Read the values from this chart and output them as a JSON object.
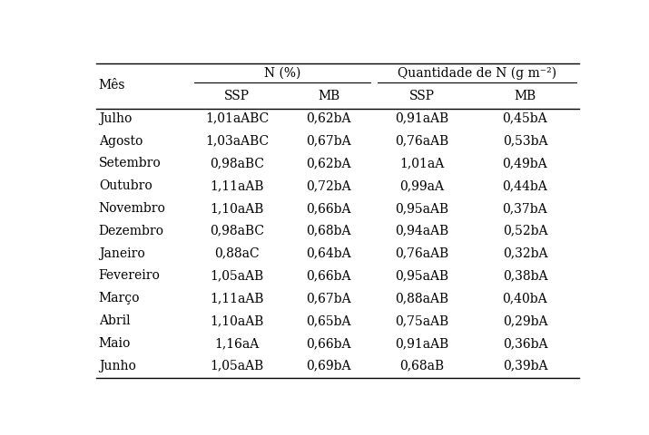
{
  "rows": [
    [
      "Julho",
      "1,01aABC",
      "0,62bA",
      "0,91aAB",
      "0,45bA"
    ],
    [
      "Agosto",
      "1,03aABC",
      "0,67bA",
      "0,76aAB",
      "0,53bA"
    ],
    [
      "Setembro",
      "0,98aBC",
      "0,62bA",
      "1,01aA",
      "0,49bA"
    ],
    [
      "Outubro",
      "1,11aAB",
      "0,72bA",
      "0,99aA",
      "0,44bA"
    ],
    [
      "Novembro",
      "1,10aAB",
      "0,66bA",
      "0,95aAB",
      "0,37bA"
    ],
    [
      "Dezembro",
      "0,98aBC",
      "0,68bA",
      "0,94aAB",
      "0,52bA"
    ],
    [
      "Janeiro",
      "0,88aC",
      "0,64bA",
      "0,76aAB",
      "0,32bA"
    ],
    [
      "Fevereiro",
      "1,05aAB",
      "0,66bA",
      "0,95aAB",
      "0,38bA"
    ],
    [
      "Março",
      "1,11aAB",
      "0,67bA",
      "0,88aAB",
      "0,40bA"
    ],
    [
      "Abril",
      "1,10aAB",
      "0,65bA",
      "0,75aAB",
      "0,29bA"
    ],
    [
      "Maio",
      "1,16aA",
      "0,66bA",
      "0,91aAB",
      "0,36bA"
    ],
    [
      "Junho",
      "1,05aAB",
      "0,69bA",
      "0,68aB",
      "0,39bA"
    ]
  ],
  "header1_col1": "Mês",
  "header1_col2": "N (%)",
  "header1_col3": "Quantidade de N (g m⁻²)",
  "header2": [
    "SSP",
    "MB",
    "SSP",
    "MB"
  ],
  "background_color": "#ffffff",
  "text_color": "#000000",
  "font_size": 10.0
}
